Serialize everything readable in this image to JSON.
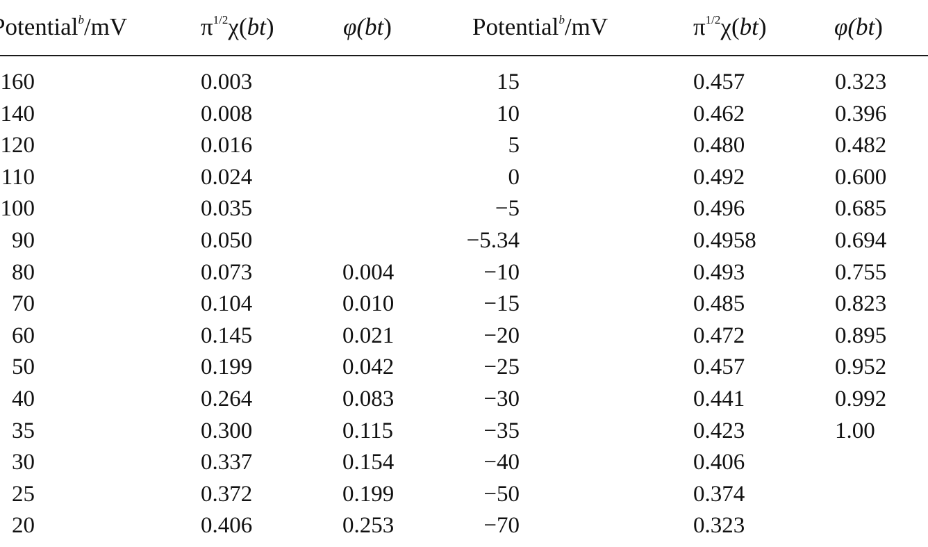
{
  "headers": {
    "left": {
      "potential_main": "Potential",
      "potential_sup": "b",
      "potential_unit": "/mV",
      "chi_prefix": "π",
      "chi_sup": "1/2",
      "chi_symbol": "χ(",
      "chi_arg": "bt",
      "chi_close": ")",
      "phi_symbol": "φ(",
      "phi_arg": "bt",
      "phi_close": ")"
    },
    "right": {
      "potential_main": "Potential",
      "potential_sup": "b",
      "potential_unit": "/mV",
      "chi_prefix": "π",
      "chi_sup": "1/2",
      "chi_symbol": "χ(",
      "chi_arg": "bt",
      "chi_close": ")",
      "phi_symbol": "φ(",
      "phi_arg": "bt",
      "phi_close": ")"
    }
  },
  "left_block": {
    "potential": [
      "160",
      "140",
      "120",
      "110",
      "100",
      "90",
      "80",
      "70",
      "60",
      "50",
      "40",
      "35",
      "30",
      "25",
      "20"
    ],
    "chi": [
      "0.003",
      "0.008",
      "0.016",
      "0.024",
      "0.035",
      "0.050",
      "0.073",
      "0.104",
      "0.145",
      "0.199",
      "0.264",
      "0.300",
      "0.337",
      "0.372",
      "0.406"
    ],
    "phi": [
      "",
      "",
      "",
      "",
      "",
      "",
      "0.004",
      "0.010",
      "0.021",
      "0.042",
      "0.083",
      "0.115",
      "0.154",
      "0.199",
      "0.253"
    ]
  },
  "right_block": {
    "potential": [
      "15",
      "10",
      "5",
      "0",
      "−5",
      "−5.34",
      "−10",
      "−15",
      "−20",
      "−25",
      "−30",
      "−35",
      "−40",
      "−50",
      "−70"
    ],
    "chi": [
      "0.457",
      "0.462",
      "0.480",
      "0.492",
      "0.496",
      "0.4958",
      "0.493",
      "0.485",
      "0.472",
      "0.457",
      "0.441",
      "0.423",
      "0.406",
      "0.374",
      "0.323"
    ],
    "phi": [
      "0.323",
      "0.396",
      "0.482",
      "0.600",
      "0.685",
      "0.694",
      "0.755",
      "0.823",
      "0.895",
      "0.952",
      "0.992",
      "1.00",
      "",
      "",
      ""
    ]
  }
}
